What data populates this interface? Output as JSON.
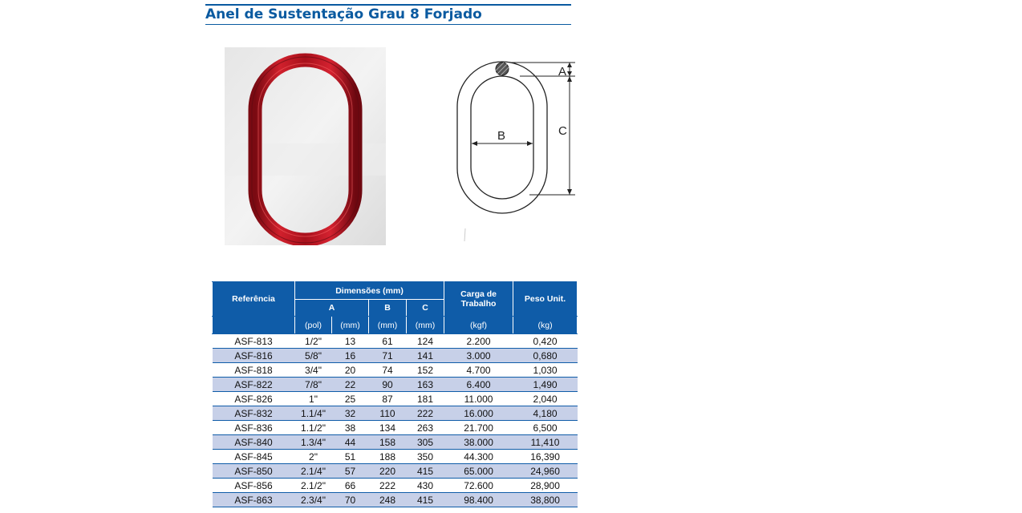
{
  "title": "Anel de Sustentação Grau 8 Forjado",
  "colors": {
    "accent": "#0a5aa0",
    "header_bg": "#0f5ca8",
    "row_alt": "#c7d0e8",
    "ring": "#b5131f"
  },
  "diagram": {
    "label_a": "A",
    "label_b": "B",
    "label_c": "C"
  },
  "table": {
    "ref_header": "Referência",
    "dim_header": "Dimensões (mm)",
    "col_a": "A",
    "col_b": "B",
    "col_c": "C",
    "carga_header": "Carga de Trabalho",
    "peso_header": "Peso Unit.",
    "units": {
      "a_pol": "(pol)",
      "a_mm": "(mm)",
      "b_mm": "(mm)",
      "c_mm": "(mm)",
      "carga": "(kgf)",
      "peso": "(kg)"
    },
    "rows": [
      [
        "ASF-813",
        "1/2\"",
        "13",
        "61",
        "124",
        "2.200",
        "0,420"
      ],
      [
        "ASF-816",
        "5/8\"",
        "16",
        "71",
        "141",
        "3.000",
        "0,680"
      ],
      [
        "ASF-818",
        "3/4\"",
        "20",
        "74",
        "152",
        "4.700",
        "1,030"
      ],
      [
        "ASF-822",
        "7/8\"",
        "22",
        "90",
        "163",
        "6.400",
        "1,490"
      ],
      [
        "ASF-826",
        "1\"",
        "25",
        "87",
        "181",
        "11.000",
        "2,040"
      ],
      [
        "ASF-832",
        "1.1/4\"",
        "32",
        "110",
        "222",
        "16.000",
        "4,180"
      ],
      [
        "ASF-836",
        "1.1/2\"",
        "38",
        "134",
        "263",
        "21.700",
        "6,500"
      ],
      [
        "ASF-840",
        "1.3/4\"",
        "44",
        "158",
        "305",
        "38.000",
        "11,410"
      ],
      [
        "ASF-845",
        "2\"",
        "51",
        "188",
        "350",
        "44.300",
        "16,390"
      ],
      [
        "ASF-850",
        "2.1/4\"",
        "57",
        "220",
        "415",
        "65.000",
        "24,960"
      ],
      [
        "ASF-856",
        "2.1/2\"",
        "66",
        "222",
        "430",
        "72.600",
        "28,900"
      ],
      [
        "ASF-863",
        "2.3/4\"",
        "70",
        "248",
        "415",
        "98.400",
        "38,800"
      ]
    ]
  }
}
